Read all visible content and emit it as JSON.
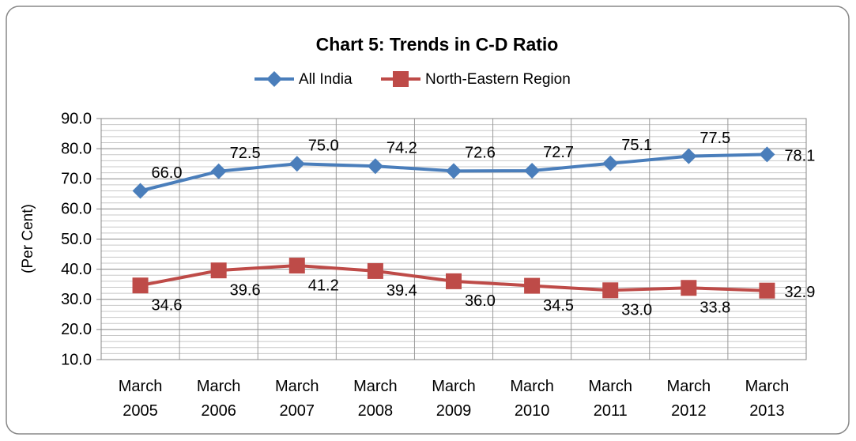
{
  "chart_data": {
    "type": "line",
    "title": "Chart 5: Trends in C-D Ratio",
    "y_label": "(Per Cent)",
    "categories": [
      "March 2005",
      "March 2006",
      "March 2007",
      "March 2008",
      "March 2009",
      "March 2010",
      "March 2011",
      "March 2012",
      "March 2013"
    ],
    "series": [
      {
        "name": "All India",
        "color": "#4a7ebb",
        "marker": "diamond",
        "values": [
          66.0,
          72.5,
          75.0,
          74.2,
          72.6,
          72.7,
          75.1,
          77.5,
          78.1
        ],
        "value_labels": [
          "66.0",
          "72.5",
          "75.0",
          "74.2",
          "72.6",
          "72.7",
          "75.1",
          "77.5",
          "78.1"
        ]
      },
      {
        "name": "North-Eastern Region",
        "color": "#be4b48",
        "marker": "square",
        "values": [
          34.6,
          39.6,
          41.2,
          39.4,
          36.0,
          34.5,
          33.0,
          33.8,
          32.9
        ],
        "value_labels": [
          "34.6",
          "39.6",
          "41.2",
          "39.4",
          "36.0",
          "34.5",
          "33.0",
          "33.8",
          "32.9"
        ]
      }
    ],
    "ylim": [
      10,
      90
    ],
    "yticks": [
      {
        "value": 10,
        "label": "10.0"
      },
      {
        "value": 20,
        "label": "20.0"
      },
      {
        "value": 30,
        "label": "30.0"
      },
      {
        "value": 40,
        "label": "40.0"
      },
      {
        "value": 50,
        "label": "50.0"
      },
      {
        "value": 60,
        "label": "60.0"
      },
      {
        "value": 70,
        "label": "70.0"
      },
      {
        "value": 80,
        "label": "80.0"
      },
      {
        "value": 90,
        "label": "90.0"
      }
    ],
    "grid": true,
    "legend": "top"
  }
}
